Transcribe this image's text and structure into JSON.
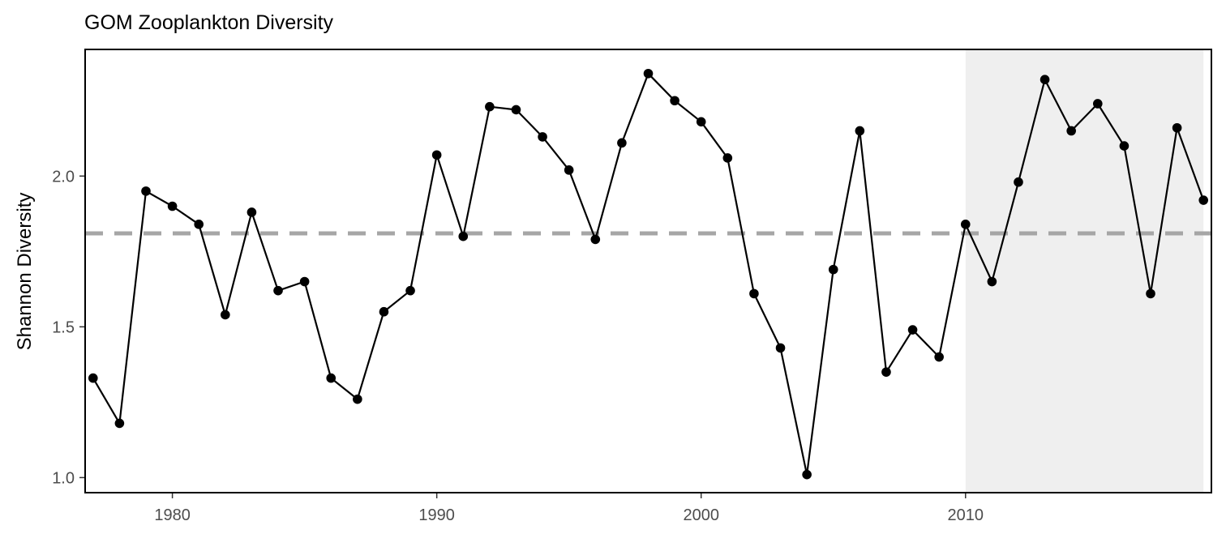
{
  "chart_data": {
    "type": "line",
    "title": "GOM Zooplankton Diversity",
    "xlabel": "",
    "ylabel": "Shannon Diversity",
    "xlim": [
      1976.7,
      2019.3
    ],
    "ylim": [
      0.95,
      2.42
    ],
    "x_ticks": [
      1980,
      1990,
      2000,
      2010
    ],
    "x_tick_labels": [
      "1980",
      "1990",
      "2000",
      "2010"
    ],
    "y_ticks": [
      1.0,
      1.5,
      2.0
    ],
    "y_tick_labels": [
      "1.0",
      "1.5",
      "2.0"
    ],
    "mean_line": 1.81,
    "shaded_region": [
      2010,
      2019
    ],
    "grid": false,
    "colors": {
      "line": "#000000",
      "points": "#000000",
      "mean_line": "#a6a6a6",
      "shade": "#efefef",
      "frame": "#000000"
    },
    "x": [
      1977,
      1978,
      1979,
      1980,
      1981,
      1982,
      1983,
      1984,
      1985,
      1986,
      1987,
      1988,
      1989,
      1990,
      1991,
      1992,
      1993,
      1994,
      1995,
      1996,
      1997,
      1998,
      1999,
      2000,
      2001,
      2002,
      2003,
      2004,
      2005,
      2006,
      2007,
      2008,
      2009,
      2010,
      2011,
      2012,
      2013,
      2014,
      2015,
      2016,
      2017,
      2018,
      2019
    ],
    "y": [
      1.33,
      1.18,
      1.95,
      1.9,
      1.84,
      1.54,
      1.88,
      1.62,
      1.65,
      1.33,
      1.26,
      1.55,
      1.62,
      2.07,
      1.8,
      2.23,
      2.22,
      2.13,
      2.02,
      1.79,
      2.11,
      2.34,
      2.25,
      2.18,
      2.06,
      1.61,
      1.43,
      1.01,
      1.69,
      2.15,
      1.35,
      1.49,
      1.4,
      1.84,
      1.65,
      1.98,
      2.32,
      2.15,
      2.24,
      2.1,
      1.61,
      2.16,
      1.92
    ]
  }
}
